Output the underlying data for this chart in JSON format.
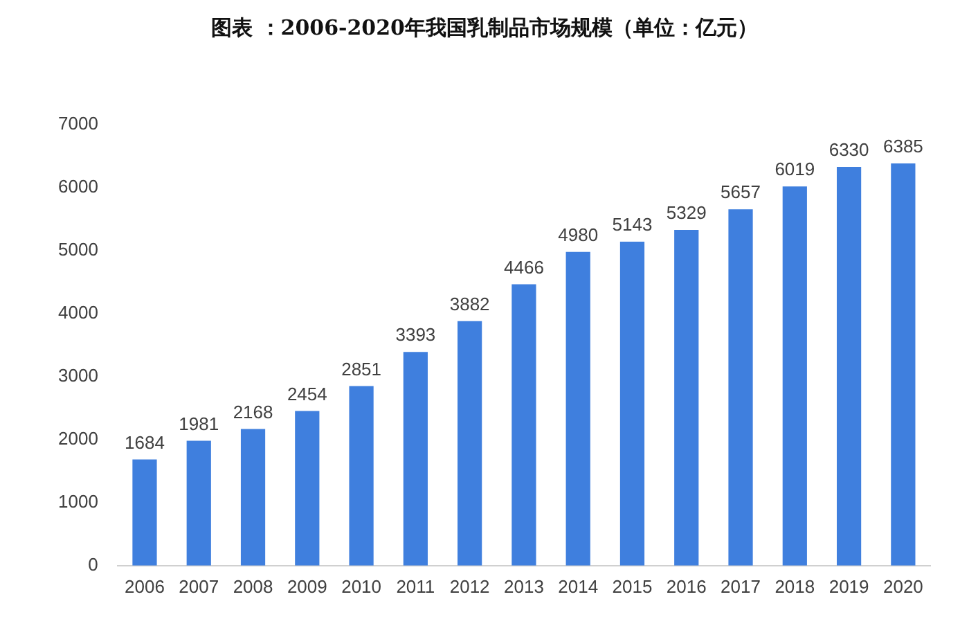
{
  "chart_data": {
    "type": "bar",
    "title": "图表 ：2006-2020年我国乳制品市场规模（单位：亿元）",
    "categories": [
      "2006",
      "2007",
      "2008",
      "2009",
      "2010",
      "2011",
      "2012",
      "2013",
      "2014",
      "2015",
      "2016",
      "2017",
      "2018",
      "2019",
      "2020"
    ],
    "values": [
      1684,
      1981,
      2168,
      2454,
      2851,
      3393,
      3882,
      4466,
      4980,
      5143,
      5329,
      5657,
      6019,
      6330,
      6385
    ],
    "color": "#3f7fde",
    "ylim": [
      0,
      7000
    ],
    "yticks": [
      0,
      1000,
      2000,
      3000,
      4000,
      5000,
      6000,
      7000
    ],
    "grid": false,
    "data_labels": true
  }
}
